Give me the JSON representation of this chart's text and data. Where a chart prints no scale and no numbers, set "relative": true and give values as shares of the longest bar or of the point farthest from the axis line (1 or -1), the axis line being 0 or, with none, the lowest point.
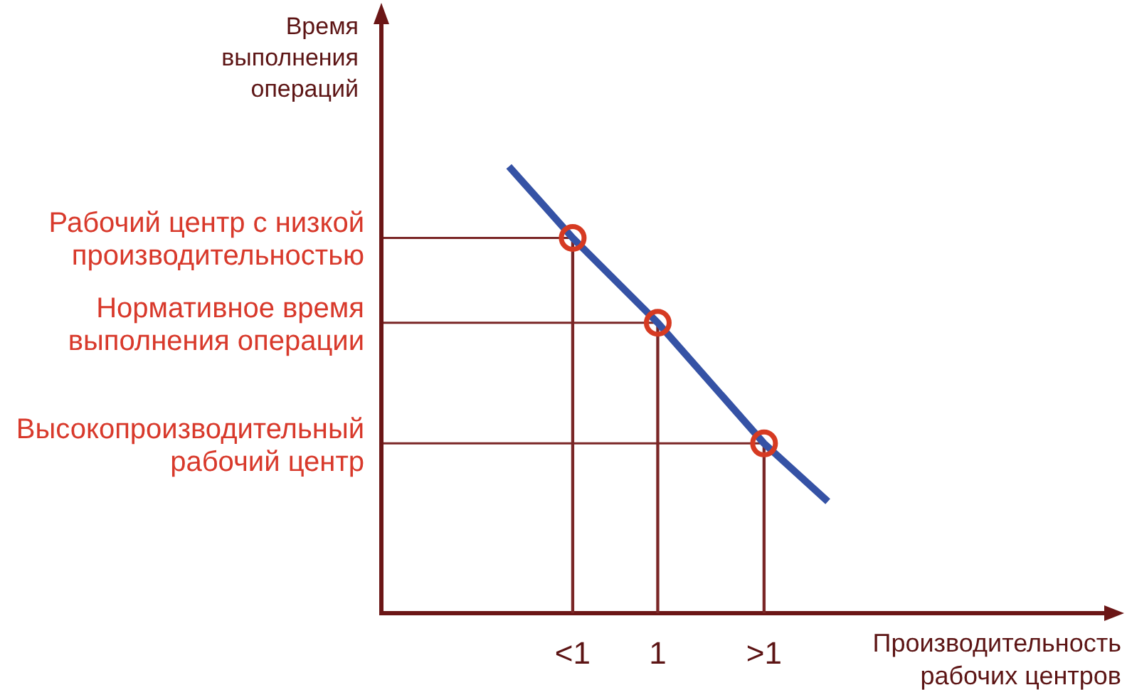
{
  "chart_data": {
    "type": "line",
    "relative": true,
    "xlabel": "Производительность рабочих центров",
    "ylabel": "Время выполнения операций",
    "categories": [
      null,
      null,
      null,
      null,
      null,
      null,
      null,
      null,
      null,
      "<1",
      null,
      null,
      null,
      "1",
      null,
      null,
      null,
      null,
      ">1",
      null,
      null,
      null,
      null,
      null,
      null,
      null,
      null,
      null,
      null,
      null,
      null,
      null,
      null,
      null,
      null
    ],
    "series": [
      {
        "type": "line",
        "color": "#3552a5",
        "values": [
          null,
          null,
          null,
          null,
          null,
          null,
          1,
          null,
          null,
          0.84,
          null,
          null,
          null,
          0.65,
          null,
          null,
          null,
          null,
          0.38,
          null,
          null,
          0.25,
          null,
          null,
          null,
          null,
          null,
          null,
          null,
          null,
          null,
          null,
          null,
          null,
          null
        ]
      },
      {
        "type": "scatter",
        "color": "#d63a22",
        "marker": "circle",
        "x": [
          "<1",
          "1",
          ">1"
        ],
        "values": [
          0.84,
          0.65,
          0.38
        ]
      },
      {
        "type": "bar",
        "color": "#7a2626",
        "x": [
          "<1",
          "1",
          ">1"
        ],
        "values": [
          0.84,
          0.65,
          0.38
        ]
      }
    ],
    "ref_lines": [
      {
        "axis": "y",
        "value": 0.84,
        "label": "Рабочий центр с низкой производительностью",
        "color": "#7a2626"
      },
      {
        "axis": "y",
        "value": 0.65,
        "label": "Нормативное время выполнения операции",
        "color": "#7a2626"
      },
      {
        "axis": "y",
        "value": 0.38,
        "label": "Высокопроизводительный рабочий центр",
        "color": "#7a2626"
      }
    ]
  }
}
